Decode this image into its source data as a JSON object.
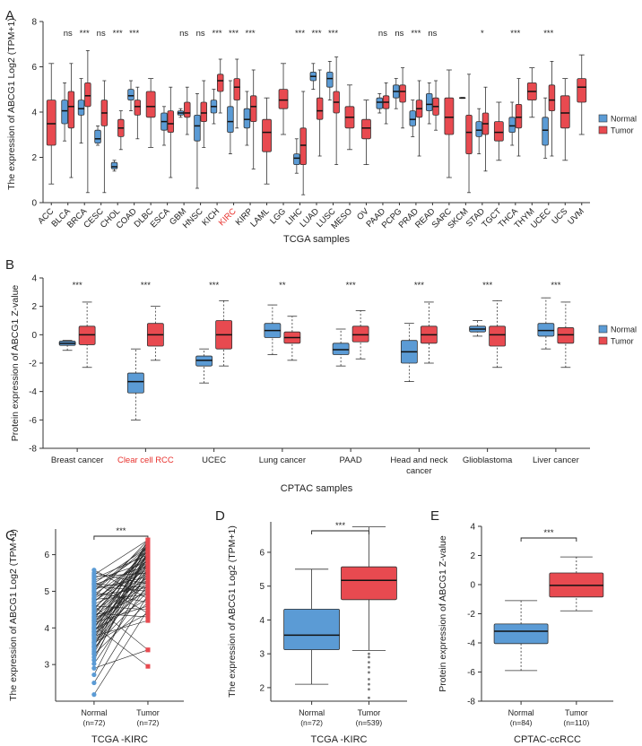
{
  "colors": {
    "normal": "#5B9BD5",
    "tumor": "#E84A50",
    "accent_label": "#E8322E",
    "axis": "#333333",
    "median": "#111111"
  },
  "chart_data": [
    {
      "id": "A",
      "panel_label": "A",
      "type": "box",
      "ylabel": "The expression of ABCG1 Log2 (TPM+1)",
      "xlabel": "TCGA samples",
      "ylim": [
        0,
        8
      ],
      "yticks": [
        0,
        2,
        4,
        6,
        8
      ],
      "highlight_category": "KIRC",
      "legend": [
        "Normal",
        "Tumor"
      ],
      "categories": [
        {
          "name": "ACC",
          "sig": "",
          "tumor": {
            "q1": 2.5,
            "med": 3.5,
            "q3": 4.6,
            "lo": 0.7,
            "hi": 6.3
          }
        },
        {
          "name": "BLCA",
          "sig": "ns",
          "normal": {
            "q1": 3.5,
            "med": 4.1,
            "q3": 4.6,
            "lo": 2.7,
            "hi": 5.4
          },
          "tumor": {
            "q1": 3.3,
            "med": 4.3,
            "q3": 5.0,
            "lo": 1.0,
            "hi": 6.3
          }
        },
        {
          "name": "BRCA",
          "sig": "***",
          "normal": {
            "q1": 3.9,
            "med": 4.2,
            "q3": 4.6,
            "lo": 2.6,
            "hi": 5.6
          },
          "tumor": {
            "q1": 4.3,
            "med": 4.8,
            "q3": 5.4,
            "lo": 0.3,
            "hi": 6.9
          }
        },
        {
          "name": "CESC",
          "sig": "ns",
          "normal": {
            "q1": 2.6,
            "med": 2.8,
            "q3": 3.2,
            "lo": 2.5,
            "hi": 3.4
          },
          "tumor": {
            "q1": 3.4,
            "med": 4.0,
            "q3": 4.6,
            "lo": 0.3,
            "hi": 5.5
          }
        },
        {
          "name": "CHOL",
          "sig": "***",
          "normal": {
            "q1": 1.4,
            "med": 1.5,
            "q3": 1.7,
            "lo": 1.3,
            "hi": 1.8
          },
          "tumor": {
            "q1": 2.9,
            "med": 3.3,
            "q3": 3.7,
            "lo": 2.3,
            "hi": 4.1
          }
        },
        {
          "name": "COAD",
          "sig": "***",
          "normal": {
            "q1": 4.6,
            "med": 4.8,
            "q3": 5.1,
            "lo": 4.1,
            "hi": 5.5
          },
          "tumor": {
            "q1": 3.9,
            "med": 4.3,
            "q3": 4.6,
            "lo": 2.8,
            "hi": 5.2
          }
        },
        {
          "name": "DLBC",
          "sig": "",
          "tumor": {
            "q1": 3.8,
            "med": 4.3,
            "q3": 5.0,
            "lo": 2.4,
            "hi": 5.6
          }
        },
        {
          "name": "ESCA",
          "sig": "",
          "normal": {
            "q1": 3.2,
            "med": 3.6,
            "q3": 4.0,
            "lo": 2.5,
            "hi": 4.3
          },
          "tumor": {
            "q1": 3.1,
            "med": 3.5,
            "q3": 4.1,
            "lo": 1.0,
            "hi": 5.2
          }
        },
        {
          "name": "GBM",
          "sig": "ns",
          "normal": {
            "q1": 3.9,
            "med": 4.0,
            "q3": 4.1,
            "lo": 3.8,
            "hi": 4.2
          },
          "tumor": {
            "q1": 3.8,
            "med": 4.0,
            "q3": 4.5,
            "lo": 3.0,
            "hi": 5.2
          }
        },
        {
          "name": "HNSC",
          "sig": "ns",
          "normal": {
            "q1": 2.7,
            "med": 3.4,
            "q3": 3.9,
            "lo": 0.5,
            "hi": 4.9
          },
          "tumor": {
            "q1": 3.6,
            "med": 4.0,
            "q3": 4.5,
            "lo": 2.4,
            "hi": 5.5
          }
        },
        {
          "name": "KICH",
          "sig": "***",
          "normal": {
            "q1": 4.0,
            "med": 4.3,
            "q3": 4.6,
            "lo": 3.5,
            "hi": 5.1
          },
          "tumor": {
            "q1": 5.0,
            "med": 5.5,
            "q3": 5.8,
            "lo": 4.0,
            "hi": 6.5
          }
        },
        {
          "name": "KIRC",
          "sig": "***",
          "normal": {
            "q1": 3.1,
            "med": 3.6,
            "q3": 4.3,
            "lo": 2.1,
            "hi": 5.5
          },
          "tumor": {
            "q1": 4.6,
            "med": 5.2,
            "q3": 5.6,
            "lo": 3.3,
            "hi": 6.5
          }
        },
        {
          "name": "KIRP",
          "sig": "***",
          "normal": {
            "q1": 3.3,
            "med": 3.7,
            "q3": 4.2,
            "lo": 2.5,
            "hi": 5.0
          },
          "tumor": {
            "q1": 3.6,
            "med": 4.3,
            "q3": 4.8,
            "lo": 1.4,
            "hi": 6.0
          }
        },
        {
          "name": "LAML",
          "sig": "",
          "tumor": {
            "q1": 2.2,
            "med": 3.1,
            "q3": 3.7,
            "lo": 0.7,
            "hi": 4.7
          }
        },
        {
          "name": "LGG",
          "sig": "",
          "tumor": {
            "q1": 4.2,
            "med": 4.6,
            "q3": 5.1,
            "lo": 3.0,
            "hi": 6.3
          }
        },
        {
          "name": "LIHC",
          "sig": "***",
          "normal": {
            "q1": 1.6,
            "med": 1.9,
            "q3": 2.1,
            "lo": 1.2,
            "hi": 2.8
          },
          "tumor": {
            "q1": 1.6,
            "med": 2.5,
            "q3": 3.3,
            "lo": 0.2,
            "hi": 5.0
          }
        },
        {
          "name": "LUAD",
          "sig": "***",
          "normal": {
            "q1": 5.5,
            "med": 5.7,
            "q3": 5.9,
            "lo": 5.1,
            "hi": 6.3
          },
          "tumor": {
            "q1": 3.7,
            "med": 4.1,
            "q3": 4.7,
            "lo": 2.0,
            "hi": 6.0
          }
        },
        {
          "name": "LUSC",
          "sig": "***",
          "normal": {
            "q1": 5.2,
            "med": 5.6,
            "q3": 5.9,
            "lo": 4.6,
            "hi": 6.4
          },
          "tumor": {
            "q1": 4.0,
            "med": 4.5,
            "q3": 5.0,
            "lo": 1.6,
            "hi": 6.6
          }
        },
        {
          "name": "MESO",
          "sig": "",
          "tumor": {
            "q1": 3.3,
            "med": 3.8,
            "q3": 4.3,
            "lo": 2.3,
            "hi": 5.3
          }
        },
        {
          "name": "OV",
          "sig": "",
          "tumor": {
            "q1": 2.8,
            "med": 3.3,
            "q3": 3.7,
            "lo": 1.6,
            "hi": 4.6
          }
        },
        {
          "name": "PAAD",
          "sig": "ns",
          "normal": {
            "q1": 4.2,
            "med": 4.5,
            "q3": 4.7,
            "lo": 4.0,
            "hi": 4.9
          },
          "tumor": {
            "q1": 4.2,
            "med": 4.5,
            "q3": 4.8,
            "lo": 3.5,
            "hi": 5.4
          }
        },
        {
          "name": "PCPG",
          "sig": "ns",
          "normal": {
            "q1": 4.7,
            "med": 5.0,
            "q3": 5.3,
            "lo": 4.2,
            "hi": 5.6
          },
          "tumor": {
            "q1": 4.5,
            "med": 5.0,
            "q3": 5.3,
            "lo": 3.3,
            "hi": 6.1
          }
        },
        {
          "name": "PRAD",
          "sig": "***",
          "normal": {
            "q1": 3.4,
            "med": 3.7,
            "q3": 4.1,
            "lo": 2.9,
            "hi": 4.6
          },
          "tumor": {
            "q1": 3.8,
            "med": 4.2,
            "q3": 4.6,
            "lo": 2.0,
            "hi": 5.5
          }
        },
        {
          "name": "READ",
          "sig": "ns",
          "normal": {
            "q1": 4.1,
            "med": 4.4,
            "q3": 4.9,
            "lo": 3.5,
            "hi": 5.4
          },
          "tumor": {
            "q1": 3.9,
            "med": 4.3,
            "q3": 4.7,
            "lo": 3.2,
            "hi": 5.5
          }
        },
        {
          "name": "SARC",
          "sig": "",
          "tumor": {
            "q1": 3.0,
            "med": 3.8,
            "q3": 4.7,
            "lo": 1.0,
            "hi": 6.0
          }
        },
        {
          "name": "SKCM",
          "sig": "",
          "normal": {
            "q1": 4.68,
            "med": 4.7,
            "q3": 4.72,
            "lo": 4.68,
            "hi": 4.72
          },
          "tumor": {
            "q1": 2.1,
            "med": 3.1,
            "q3": 3.9,
            "lo": 0.3,
            "hi": 5.8
          }
        },
        {
          "name": "STAD",
          "sig": "*",
          "normal": {
            "q1": 2.9,
            "med": 3.2,
            "q3": 3.6,
            "lo": 2.1,
            "hi": 4.2
          },
          "tumor": {
            "q1": 3.0,
            "med": 3.5,
            "q3": 4.0,
            "lo": 1.3,
            "hi": 5.2
          }
        },
        {
          "name": "TGCT",
          "sig": "",
          "tumor": {
            "q1": 2.7,
            "med": 3.1,
            "q3": 3.6,
            "lo": 1.8,
            "hi": 4.5
          }
        },
        {
          "name": "THCA",
          "sig": "***",
          "normal": {
            "q1": 3.1,
            "med": 3.4,
            "q3": 3.8,
            "lo": 2.5,
            "hi": 4.5
          },
          "tumor": {
            "q1": 3.3,
            "med": 3.8,
            "q3": 4.4,
            "lo": 2.0,
            "hi": 5.6
          }
        },
        {
          "name": "THYM",
          "sig": "",
          "tumor": {
            "q1": 4.6,
            "med": 5.0,
            "q3": 5.4,
            "lo": 3.8,
            "hi": 6.1
          }
        },
        {
          "name": "UCEC",
          "sig": "***",
          "normal": {
            "q1": 2.5,
            "med": 3.2,
            "q3": 3.8,
            "lo": 1.9,
            "hi": 4.7
          },
          "tumor": {
            "q1": 4.1,
            "med": 4.6,
            "q3": 5.3,
            "lo": 2.0,
            "hi": 6.4
          }
        },
        {
          "name": "UCS",
          "sig": "",
          "tumor": {
            "q1": 3.3,
            "med": 4.0,
            "q3": 4.8,
            "lo": 1.8,
            "hi": 5.6
          }
        },
        {
          "name": "UVM",
          "sig": "",
          "tumor": {
            "q1": 4.5,
            "med": 5.2,
            "q3": 5.6,
            "lo": 3.0,
            "hi": 6.7
          }
        }
      ]
    },
    {
      "id": "B",
      "panel_label": "B",
      "type": "box",
      "ylabel": "Protein expression of ABCG1 Z-value",
      "xlabel": "CPTAC samples",
      "ylim": [
        -8,
        4
      ],
      "yticks": [
        -8,
        -6,
        -4,
        -2,
        0,
        2,
        4
      ],
      "highlight_category": "Clear cell RCC",
      "legend": [
        "Normal",
        "Tumor"
      ],
      "categories": [
        {
          "name": "Breast cancer",
          "sig": "***",
          "normal": {
            "q1": -0.75,
            "med": -0.6,
            "q3": -0.45,
            "lo": -1.1,
            "hi": -0.4
          },
          "tumor": {
            "q1": -0.7,
            "med": 0.0,
            "q3": 0.6,
            "lo": -2.3,
            "hi": 2.3
          }
        },
        {
          "name": "Clear cell RCC",
          "sig": "***",
          "normal": {
            "q1": -4.1,
            "med": -3.3,
            "q3": -2.7,
            "lo": -6.0,
            "hi": -1.0
          },
          "tumor": {
            "q1": -0.8,
            "med": 0.0,
            "q3": 0.8,
            "lo": -1.8,
            "hi": 2.0
          }
        },
        {
          "name": "UCEC",
          "sig": "***",
          "normal": {
            "q1": -2.2,
            "med": -1.8,
            "q3": -1.5,
            "lo": -3.4,
            "hi": -1.0
          },
          "tumor": {
            "q1": -1.0,
            "med": 0.0,
            "q3": 1.0,
            "lo": -2.2,
            "hi": 2.4
          }
        },
        {
          "name": "Lung cancer",
          "sig": "**",
          "normal": {
            "q1": -0.2,
            "med": 0.3,
            "q3": 0.8,
            "lo": -1.4,
            "hi": 2.1
          },
          "tumor": {
            "q1": -0.6,
            "med": -0.2,
            "q3": 0.2,
            "lo": -1.8,
            "hi": 1.3
          }
        },
        {
          "name": "PAAD",
          "sig": "***",
          "normal": {
            "q1": -1.4,
            "med": -1.05,
            "q3": -0.6,
            "lo": -2.2,
            "hi": 0.4
          },
          "tumor": {
            "q1": -0.5,
            "med": 0.0,
            "q3": 0.6,
            "lo": -1.7,
            "hi": 1.7
          }
        },
        {
          "name": "Head and neck cancer",
          "sig": "***",
          "normal": {
            "q1": -2.0,
            "med": -1.2,
            "q3": -0.4,
            "lo": -3.3,
            "hi": 0.8
          },
          "tumor": {
            "q1": -0.6,
            "med": 0.0,
            "q3": 0.6,
            "lo": -2.0,
            "hi": 2.3
          }
        },
        {
          "name": "Glioblastoma",
          "sig": "***",
          "normal": {
            "q1": 0.2,
            "med": 0.4,
            "q3": 0.6,
            "lo": -0.1,
            "hi": 1.0
          },
          "tumor": {
            "q1": -0.8,
            "med": 0.0,
            "q3": 0.6,
            "lo": -2.3,
            "hi": 2.4
          }
        },
        {
          "name": "Liver cancer",
          "sig": "***",
          "normal": {
            "q1": -0.1,
            "med": 0.3,
            "q3": 0.8,
            "lo": -1.0,
            "hi": 2.6
          },
          "tumor": {
            "q1": -0.6,
            "med": 0.0,
            "q3": 0.5,
            "lo": -2.3,
            "hi": 2.3
          }
        }
      ]
    },
    {
      "id": "C",
      "panel_label": "C",
      "type": "paired",
      "ylabel": "The expression of ABCG1 Log2 (TPM+1)",
      "xlabel": "TCGA -KIRC",
      "ylim": [
        2.0,
        6.7
      ],
      "yticks": [
        3,
        4,
        5,
        6
      ],
      "groups": [
        "Normal",
        "Tumor"
      ],
      "ns": [
        "(n=72)",
        "(n=72)"
      ],
      "sig": "***",
      "normal_values": [
        2.18,
        2.5,
        2.72,
        2.9,
        3.02,
        3.12,
        3.2,
        3.28,
        3.35,
        3.4,
        3.46,
        3.5,
        3.56,
        3.6,
        3.64,
        3.7,
        3.74,
        3.78,
        3.82,
        3.86,
        3.9,
        3.94,
        3.98,
        4.02,
        4.06,
        4.1,
        4.14,
        4.18,
        4.22,
        4.26,
        4.3,
        4.35,
        4.4,
        4.45,
        4.5,
        4.55,
        4.6,
        4.65,
        4.7,
        4.74,
        4.78,
        4.83,
        4.88,
        4.92,
        4.97,
        5.02,
        5.06,
        5.1,
        5.14,
        5.18,
        5.22,
        5.26,
        5.3,
        5.35,
        5.4,
        5.45,
        5.5,
        5.58,
        3.3,
        3.6,
        3.8,
        4.0,
        4.2,
        4.4,
        4.6,
        4.8,
        5.0,
        5.2,
        3.5,
        3.9,
        4.3,
        4.7
      ],
      "tumor_values": [
        4.5,
        4.9,
        5.6,
        3.4,
        5.2,
        6.1,
        5.8,
        4.7,
        6.3,
        5.5,
        5.0,
        6.0,
        5.3,
        4.4,
        5.9,
        6.2,
        5.7,
        4.2,
        5.1,
        6.4,
        5.4,
        4.8,
        6.0,
        5.6,
        2.95,
        5.9,
        4.6,
        5.2,
        6.3,
        5.0,
        5.7,
        6.1,
        4.3,
        5.5,
        6.2,
        5.8,
        3.4,
        5.3,
        6.0,
        5.6,
        4.9,
        6.4,
        5.1,
        5.9,
        4.7,
        6.3,
        5.4,
        6.1,
        5.0,
        5.7,
        6.2,
        4.4,
        5.8,
        6.0,
        5.5,
        6.4,
        5.2,
        4.8,
        6.1,
        5.6,
        5.9,
        6.3,
        5.3,
        6.0,
        4.5,
        5.7,
        6.2,
        5.1,
        6.4,
        5.8,
        5.4,
        6.1
      ]
    },
    {
      "id": "D",
      "panel_label": "D",
      "type": "box",
      "ylabel": "The expression of ABCG1 Log2 (TPM+1)",
      "xlabel": "TCGA -KIRC",
      "ylim": [
        1.6,
        6.9
      ],
      "yticks": [
        2,
        3,
        4,
        5,
        6
      ],
      "groups": [
        "Normal",
        "Tumor"
      ],
      "ns": [
        "(n=72)",
        "(n=539)"
      ],
      "sig": "***",
      "normal": {
        "q1": 3.12,
        "med": 3.55,
        "q3": 4.32,
        "lo": 2.1,
        "hi": 5.5
      },
      "tumor": {
        "q1": 4.6,
        "med": 5.17,
        "q3": 5.57,
        "lo": 3.1,
        "hi": 6.75
      },
      "tumor_outliers": [
        1.7,
        1.95,
        2.1,
        2.25,
        2.45,
        2.6,
        2.75,
        2.9,
        3.0
      ]
    },
    {
      "id": "E",
      "panel_label": "E",
      "type": "box",
      "ylabel": "Protein expression of ABCG1 Z-value",
      "xlabel": "CPTAC-ccRCC",
      "ylim": [
        -8,
        4
      ],
      "yticks": [
        -8,
        -6,
        -4,
        -2,
        0,
        2,
        4
      ],
      "groups": [
        "Normal",
        "Tumor"
      ],
      "ns": [
        "(n=84)",
        "(n=110)"
      ],
      "sig": "***",
      "normal": {
        "q1": -4.05,
        "med": -3.2,
        "q3": -2.7,
        "lo": -5.9,
        "hi": -1.1
      },
      "tumor": {
        "q1": -0.85,
        "med": -0.05,
        "q3": 0.8,
        "lo": -1.8,
        "hi": 1.9
      }
    }
  ]
}
